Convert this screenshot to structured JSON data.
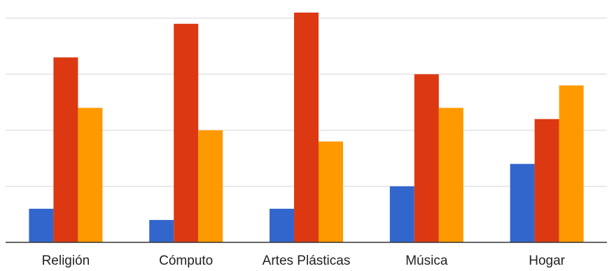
{
  "chart_data": {
    "type": "bar",
    "categories": [
      "Religión",
      "Cómputo",
      "Artes Plásticas",
      "Música",
      "Hogar"
    ],
    "series": [
      {
        "values": [
          0.6,
          0.4,
          0.6,
          1.0,
          1.4
        ]
      },
      {
        "values": [
          3.3,
          3.9,
          4.1,
          3.0,
          2.2
        ]
      },
      {
        "values": [
          2.4,
          2.0,
          1.8,
          2.4,
          2.8
        ]
      }
    ],
    "ylim": [
      0,
      4.2
    ],
    "gridlines": [
      1,
      2,
      3,
      4
    ],
    "grid": true,
    "legend": "none",
    "colors": [
      "#3366cc",
      "#dc3912",
      "#ff9900"
    ]
  }
}
